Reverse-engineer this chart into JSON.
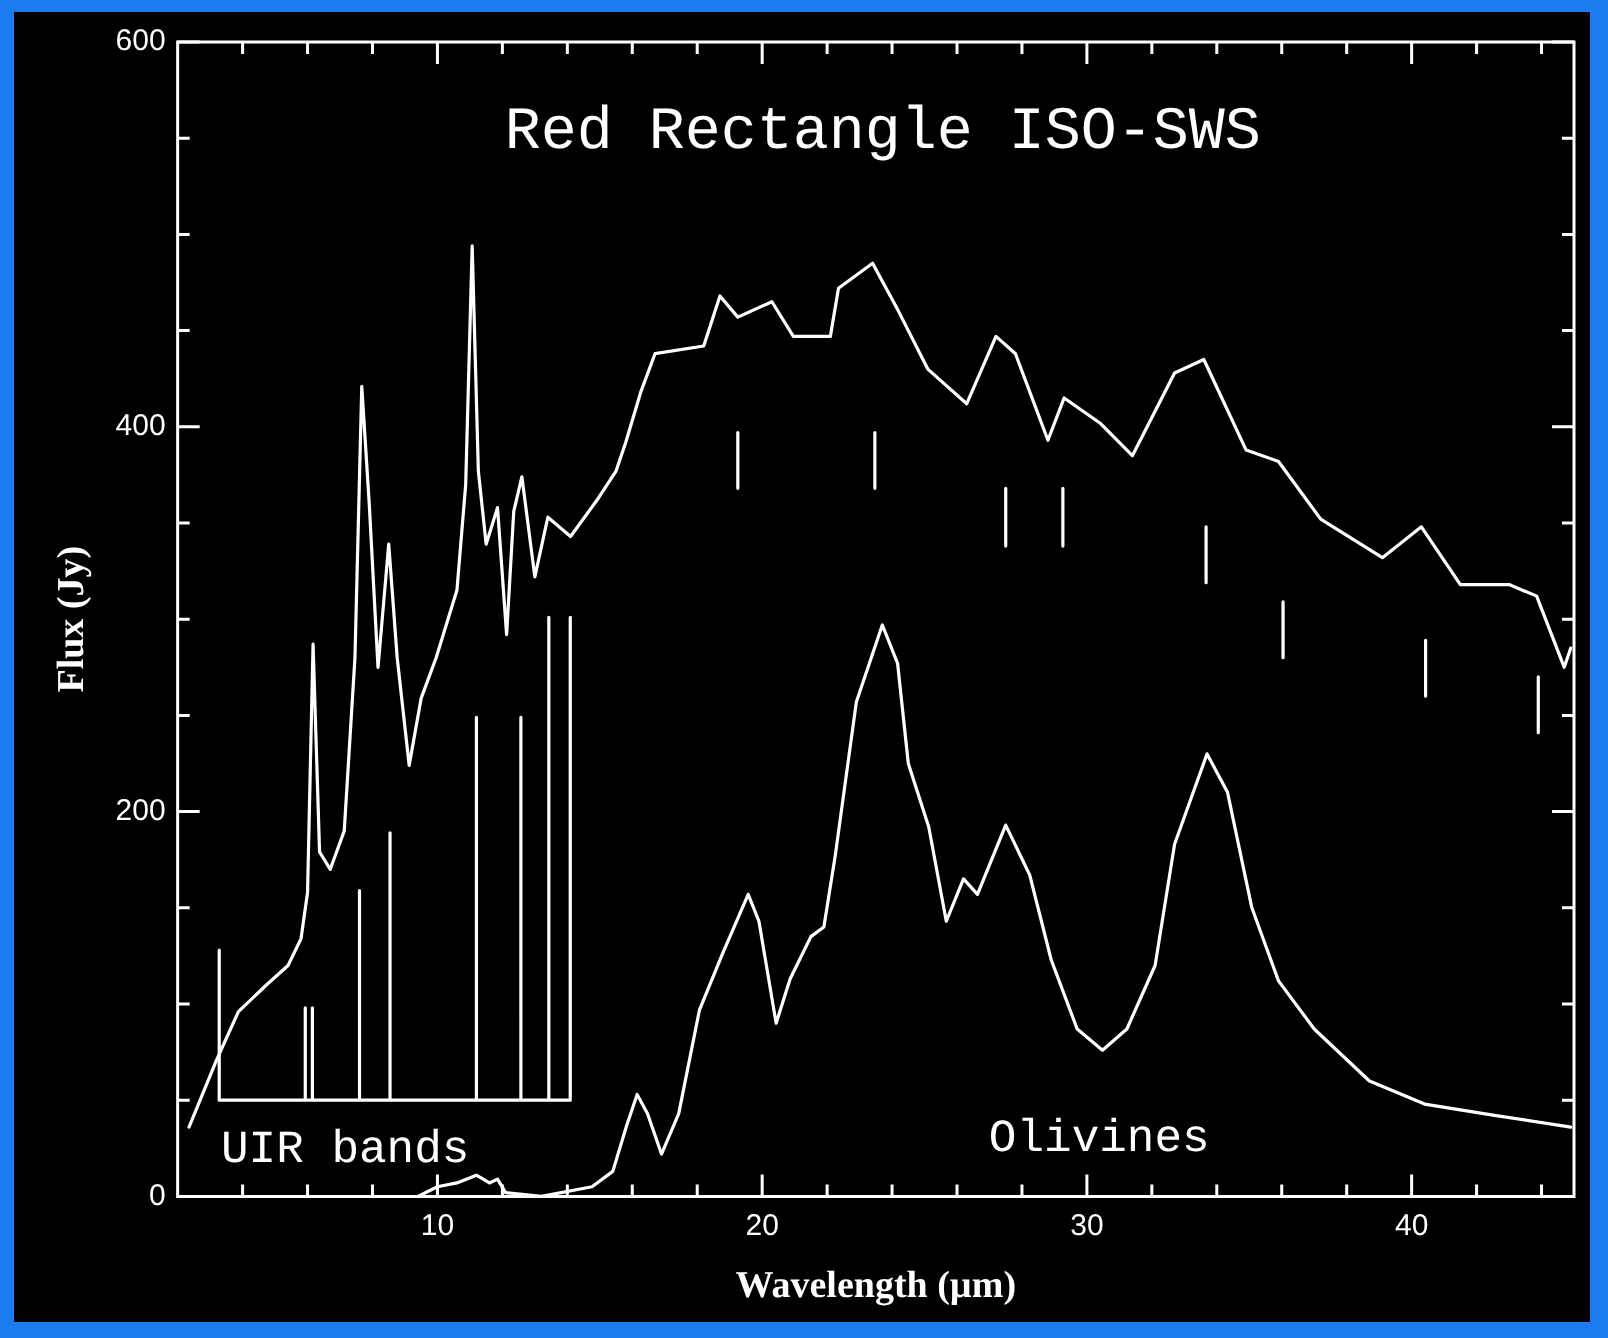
{
  "chart_data": {
    "type": "line",
    "title": "Red Rectangle ISO-SWS",
    "xlabel": "Wavelength (µm)",
    "ylabel": "Flux (Jy)",
    "xlim": [
      2,
      45
    ],
    "ylim": [
      0,
      600
    ],
    "xticks": [
      {
        "value": 4,
        "label": null
      },
      {
        "value": 6,
        "label": null
      },
      {
        "value": 8,
        "label": null
      },
      10,
      {
        "value": 12,
        "label": null
      },
      {
        "value": 14,
        "label": null
      },
      {
        "value": 16,
        "label": null
      },
      {
        "value": 18,
        "label": null
      },
      20,
      {
        "value": 22,
        "label": null
      },
      {
        "value": 24,
        "label": null
      },
      {
        "value": 26,
        "label": null
      },
      {
        "value": 28,
        "label": null
      },
      30,
      {
        "value": 32,
        "label": null
      },
      {
        "value": 34,
        "label": null
      },
      {
        "value": 36,
        "label": null
      },
      {
        "value": 38,
        "label": null
      },
      40,
      {
        "value": 42,
        "label": null
      },
      {
        "value": 44,
        "label": null
      }
    ],
    "yticks": [
      0,
      {
        "value": 50,
        "label": null
      },
      {
        "value": 100,
        "label": null
      },
      {
        "value": 150,
        "label": null
      },
      200,
      {
        "value": 250,
        "label": null
      },
      {
        "value": 300,
        "label": null
      },
      {
        "value": 350,
        "label": null
      },
      400,
      {
        "value": 450,
        "label": null
      },
      {
        "value": 500,
        "label": null
      },
      {
        "value": 550,
        "label": null
      },
      600
    ],
    "grid": false,
    "legend": false,
    "marker": "none",
    "line_style": "solid",
    "annotations": [
      "UIR bands",
      "Olivines"
    ],
    "series": [
      {
        "color": "#ffffff",
        "x": [
          2.35,
          3.2,
          3.87,
          4.74,
          5.4,
          5.8,
          6.0,
          6.17,
          6.37,
          6.7,
          7.13,
          7.46,
          7.67,
          7.9,
          8.17,
          8.5,
          8.76,
          9.13,
          9.5,
          9.96,
          10.6,
          10.87,
          11.07,
          11.26,
          11.5,
          11.85,
          12.13,
          12.35,
          12.6,
          13.0,
          13.4,
          14.1,
          14.96,
          15.5,
          15.8,
          16.26,
          16.7,
          18.2,
          18.7,
          19.25,
          20.3,
          20.96,
          22.1,
          22.35,
          23.4,
          24.2,
          25.1,
          26.3,
          27.2,
          27.8,
          28.8,
          29.3,
          30.4,
          31.4,
          32.7,
          33.6,
          34.9,
          35.9,
          37.2,
          39.1,
          40.3,
          41.5,
          43.0,
          43.85,
          44.7,
          44.9
        ],
        "values": [
          36,
          71,
          96,
          110,
          120,
          134,
          158,
          287,
          179,
          170,
          190,
          280,
          421,
          360,
          275,
          339,
          280,
          224,
          259,
          280,
          315,
          370,
          494,
          377,
          339,
          358,
          292,
          356,
          374,
          322,
          353,
          343,
          363,
          377,
          392,
          418,
          438,
          442,
          468,
          457,
          465,
          447,
          447,
          472,
          485,
          460,
          430,
          412,
          447,
          438,
          393,
          415,
          402,
          385,
          428,
          435,
          388,
          382,
          352,
          332,
          348,
          318,
          318,
          312,
          275,
          285
        ]
      },
      {
        "color": "#ffffff",
        "x": [
          9.4,
          10.0,
          10.6,
          11.2,
          11.6,
          11.85,
          12.1,
          13.2,
          14.76,
          15.4,
          15.83,
          16.15,
          16.47,
          16.9,
          17.43,
          18.07,
          18.8,
          19.57,
          19.9,
          20.43,
          20.86,
          21.5,
          21.9,
          22.25,
          22.9,
          23.7,
          24.17,
          24.5,
          25.13,
          25.67,
          26.2,
          26.63,
          27.5,
          28.24,
          28.9,
          29.7,
          30.48,
          31.23,
          32.1,
          32.7,
          33.7,
          34.33,
          35.08,
          35.9,
          37.0,
          38.7,
          40.4,
          42.6,
          44.9
        ],
        "values": [
          0,
          5,
          7,
          11,
          7,
          9,
          2,
          0,
          5,
          13,
          37,
          53,
          43,
          22,
          43,
          97,
          127,
          157,
          143,
          90,
          113,
          135,
          140,
          177,
          257,
          297,
          277,
          225,
          192,
          143,
          165,
          157,
          193,
          167,
          123,
          87,
          76,
          87,
          120,
          183,
          230,
          210,
          150,
          112,
          87,
          60,
          48,
          42,
          36
        ]
      },
      {
        "color": "#ffffff",
        "x": [
          3.28,
          3.28,
          5.93,
          5.93,
          5.93,
          6.15,
          6.15,
          6.15,
          7.6,
          7.6,
          7.6,
          8.54,
          8.54,
          8.54,
          11.2,
          11.2,
          11.2,
          12.57,
          12.57,
          12.57,
          13.43,
          13.43,
          13.43,
          14.09,
          14.09
        ],
        "values": [
          128,
          50,
          50,
          98,
          50,
          50,
          98,
          50,
          50,
          159,
          50,
          50,
          189,
          50,
          50,
          249,
          50,
          50,
          249,
          50,
          50,
          301,
          50,
          50,
          301
        ]
      },
      {
        "color": "#ffffff",
        "x": [
          19.25,
          19.25
        ],
        "values": [
          397,
          368
        ]
      },
      {
        "color": "#ffffff",
        "x": [
          23.47,
          23.47
        ],
        "values": [
          397,
          368
        ]
      },
      {
        "color": "#ffffff",
        "x": [
          27.5,
          27.5
        ],
        "values": [
          368,
          338
        ]
      },
      {
        "color": "#ffffff",
        "x": [
          29.26,
          29.26
        ],
        "values": [
          368,
          338
        ]
      },
      {
        "color": "#ffffff",
        "x": [
          33.67,
          33.67
        ],
        "values": [
          348,
          319
        ]
      },
      {
        "color": "#ffffff",
        "x": [
          36.04,
          36.04
        ],
        "values": [
          309,
          280
        ]
      },
      {
        "color": "#ffffff",
        "x": [
          40.43,
          40.43
        ],
        "values": [
          289,
          260
        ]
      },
      {
        "color": "#ffffff",
        "x": [
          43.9,
          43.9
        ],
        "values": [
          270,
          241
        ]
      }
    ]
  }
}
